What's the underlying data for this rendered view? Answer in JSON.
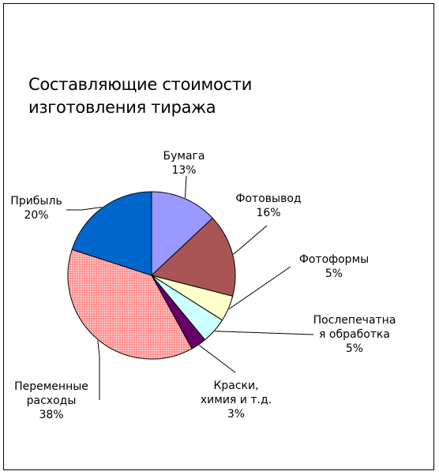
{
  "chart_data": {
    "type": "pie",
    "title_lines": [
      "Составляющие стоимости",
      "изготовления тиража"
    ],
    "slices": [
      {
        "name_lines": [
          "Бумага"
        ],
        "value": 13,
        "value_label": "13%",
        "color": "#9999ff"
      },
      {
        "name_lines": [
          "Фотовывод"
        ],
        "value": 16,
        "value_label": "16%",
        "color": "#aa5555"
      },
      {
        "name_lines": [
          "Фотоформы"
        ],
        "value": 5,
        "value_label": "5%",
        "color": "#ffffcc"
      },
      {
        "name_lines": [
          "Послепечатна",
          "я обработка"
        ],
        "value": 5,
        "value_label": "5%",
        "color": "#ccffff"
      },
      {
        "name_lines": [
          "Краски,",
          "химия и т.д."
        ],
        "value": 3,
        "value_label": "3%",
        "color": "#660066"
      },
      {
        "name_lines": [
          "Переменные",
          "расходы"
        ],
        "value": 38,
        "value_label": "38%",
        "color": "#ff9999"
      },
      {
        "name_lines": [
          "Прибыль"
        ],
        "value": 20,
        "value_label": "20%",
        "color": "#0066cc"
      }
    ],
    "legend": "none"
  }
}
